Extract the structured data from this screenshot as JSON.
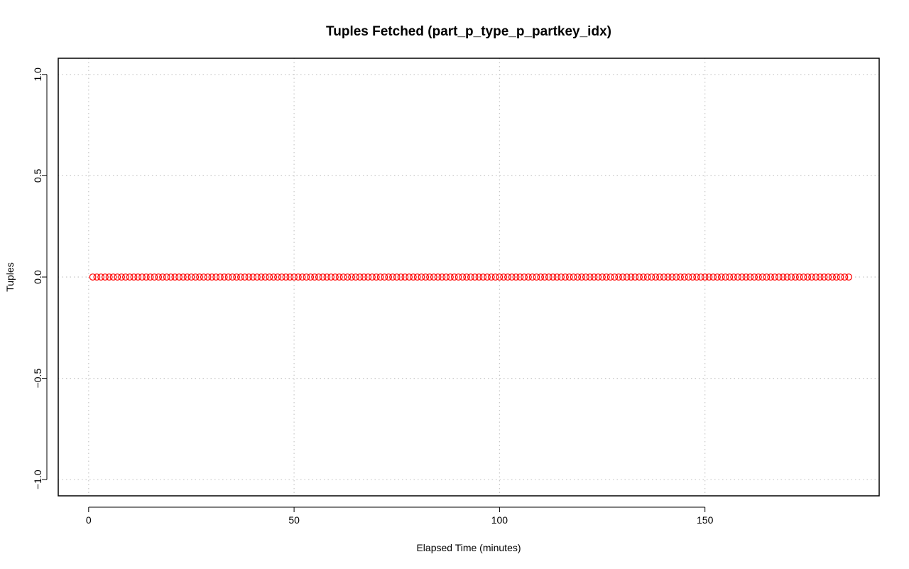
{
  "chart_data": {
    "type": "scatter",
    "title": "Tuples Fetched (part_p_type_p_partkey_idx)",
    "xlabel": "Elapsed Time (minutes)",
    "ylabel": "Tuples",
    "xlim": [
      -7.4,
      192.4
    ],
    "ylim": [
      -1.08,
      1.08
    ],
    "x_ticks": [
      0,
      50,
      100,
      150
    ],
    "x_tick_labels": [
      "0",
      "50",
      "100",
      "150"
    ],
    "y_ticks": [
      -1.0,
      -0.5,
      0.0,
      0.5,
      1.0
    ],
    "y_tick_labels": [
      "−1.0",
      "−0.5",
      "0.0",
      "0.5",
      "1.0"
    ],
    "grid": true,
    "series": [
      {
        "color": "#ff0000",
        "marker": "open-circle",
        "x_start": 1,
        "x_end": 185,
        "x_step": 1,
        "y_constant": 0
      }
    ]
  }
}
